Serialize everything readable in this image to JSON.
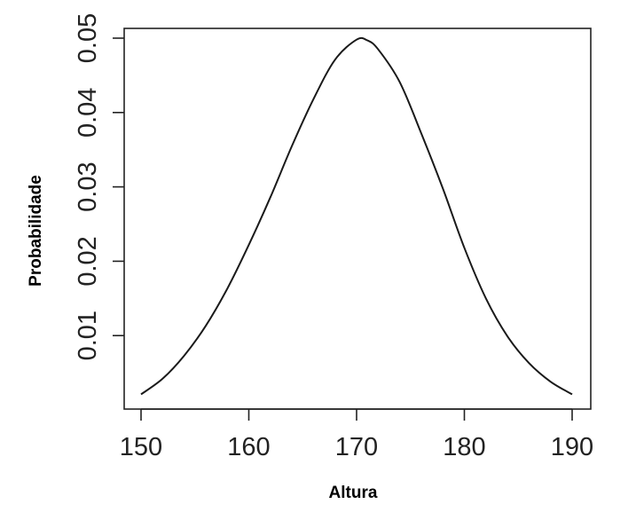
{
  "chart_data": {
    "type": "line",
    "title": "",
    "xlabel": "Altura",
    "ylabel": "Probabilidade",
    "xlim": [
      150,
      190
    ],
    "ylim": [
      0.0,
      0.05
    ],
    "x_ticks": [
      150,
      160,
      170,
      180,
      190
    ],
    "x_tick_labels": [
      "150",
      "160",
      "170",
      "180",
      "190"
    ],
    "y_ticks": [
      0.01,
      0.02,
      0.03,
      0.04,
      0.05
    ],
    "y_tick_labels": [
      "0.01",
      "0.02",
      "0.03",
      "0.04",
      "0.05"
    ],
    "grid": false,
    "legend": false,
    "series": [
      {
        "x": [
          150,
          152,
          154,
          156,
          158,
          160,
          162,
          164,
          166,
          168,
          170,
          171,
          172,
          174,
          176,
          178,
          180,
          182,
          184,
          186,
          188,
          190
        ],
        "y": [
          0.0021,
          0.0042,
          0.0073,
          0.0113,
          0.0163,
          0.0222,
          0.0286,
          0.0355,
          0.0418,
          0.0471,
          0.0498,
          0.0497,
          0.0485,
          0.0441,
          0.0372,
          0.0298,
          0.0218,
          0.015,
          0.0099,
          0.0063,
          0.0038,
          0.0021
        ],
        "color": "#1a1a1a"
      }
    ]
  }
}
